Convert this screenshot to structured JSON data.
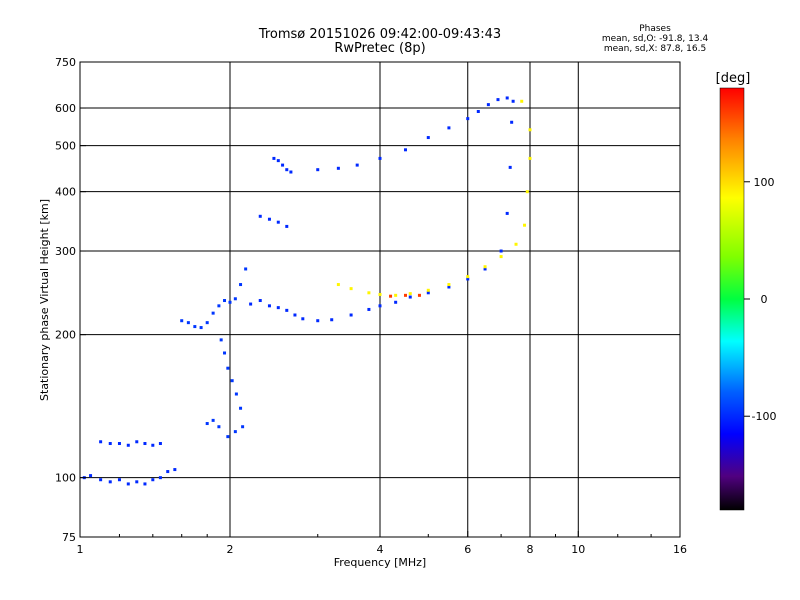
{
  "title_line1": "Tromsø 20151026 09:42:00-09:43:43",
  "title_line2": "RwPretec (8p)",
  "phase_header": "Phases",
  "phase_o_line": "mean, sd,O: -91.8, 13.4",
  "phase_x_line": "mean, sd,X: 87.8, 16.5",
  "chart_data": {
    "type": "scatter",
    "xlabel": "Frequency [MHz]",
    "ylabel": "Stationary phase Virtual Height [km]",
    "xscale": "log",
    "yscale": "log",
    "xlim": [
      1,
      16
    ],
    "ylim": [
      75,
      750
    ],
    "xticks": [
      1,
      2,
      4,
      6,
      8,
      10,
      16
    ],
    "yticks": [
      75,
      100,
      200,
      300,
      400,
      500,
      600,
      750
    ],
    "grid_x": [
      2,
      4,
      6,
      8,
      10
    ],
    "grid_y": [
      100,
      200,
      300,
      400,
      500,
      600
    ],
    "colorbar": {
      "label": "[deg]",
      "min": -180,
      "max": 180,
      "ticks": [
        100,
        0,
        -100
      ],
      "colormap": "rainbow"
    },
    "series": [
      {
        "phase": -100,
        "points": [
          [
            1.02,
            100
          ],
          [
            1.05,
            101
          ],
          [
            1.1,
            99
          ],
          [
            1.15,
            98
          ],
          [
            1.2,
            99
          ],
          [
            1.25,
            97
          ],
          [
            1.3,
            98
          ],
          [
            1.35,
            97
          ],
          [
            1.4,
            99
          ],
          [
            1.45,
            100
          ],
          [
            1.5,
            103
          ],
          [
            1.55,
            104
          ]
        ]
      },
      {
        "phase": -100,
        "points": [
          [
            1.1,
            119
          ],
          [
            1.15,
            118
          ],
          [
            1.2,
            118
          ],
          [
            1.25,
            117
          ],
          [
            1.3,
            119
          ],
          [
            1.35,
            118
          ],
          [
            1.4,
            117
          ],
          [
            1.45,
            118
          ]
        ]
      },
      {
        "phase": -95,
        "points": [
          [
            1.6,
            214
          ],
          [
            1.65,
            212
          ],
          [
            1.7,
            208
          ],
          [
            1.75,
            207
          ],
          [
            1.8,
            212
          ],
          [
            1.85,
            222
          ],
          [
            1.9,
            230
          ],
          [
            1.95,
            236
          ],
          [
            2.0,
            234
          ],
          [
            2.05,
            238
          ],
          [
            2.1,
            255
          ],
          [
            2.15,
            275
          ]
        ]
      },
      {
        "phase": -95,
        "points": [
          [
            1.92,
            195
          ],
          [
            1.95,
            183
          ],
          [
            1.98,
            170
          ],
          [
            2.02,
            160
          ],
          [
            2.06,
            150
          ],
          [
            2.1,
            140
          ],
          [
            2.12,
            128
          ],
          [
            2.05,
            125
          ],
          [
            1.98,
            122
          ],
          [
            1.9,
            128
          ],
          [
            1.85,
            132
          ],
          [
            1.8,
            130
          ]
        ]
      },
      {
        "phase": -100,
        "points": [
          [
            2.2,
            232
          ],
          [
            2.3,
            236
          ],
          [
            2.4,
            230
          ],
          [
            2.5,
            228
          ],
          [
            2.6,
            225
          ],
          [
            2.7,
            220
          ],
          [
            2.8,
            216
          ],
          [
            3.0,
            214
          ],
          [
            3.2,
            215
          ],
          [
            3.5,
            220
          ],
          [
            3.8,
            226
          ],
          [
            4.0,
            230
          ],
          [
            4.3,
            234
          ],
          [
            4.6,
            240
          ],
          [
            5.0,
            245
          ],
          [
            5.5,
            252
          ],
          [
            6.0,
            262
          ],
          [
            6.5,
            275
          ],
          [
            7.0,
            300
          ],
          [
            7.2,
            360
          ],
          [
            7.3,
            450
          ],
          [
            7.35,
            560
          ],
          [
            7.4,
            620
          ]
        ]
      },
      {
        "phase": -100,
        "points": [
          [
            2.45,
            470
          ],
          [
            2.5,
            465
          ],
          [
            2.55,
            455
          ],
          [
            2.6,
            445
          ],
          [
            2.65,
            440
          ],
          [
            2.3,
            355
          ],
          [
            2.4,
            350
          ],
          [
            2.5,
            345
          ],
          [
            2.6,
            338
          ]
        ]
      },
      {
        "phase": -100,
        "points": [
          [
            3.0,
            445
          ],
          [
            3.3,
            448
          ],
          [
            3.6,
            455
          ],
          [
            4.0,
            470
          ],
          [
            4.5,
            490
          ],
          [
            5.0,
            520
          ],
          [
            5.5,
            545
          ],
          [
            6.0,
            570
          ],
          [
            6.3,
            590
          ],
          [
            6.6,
            610
          ],
          [
            6.9,
            625
          ],
          [
            7.2,
            630
          ]
        ]
      },
      {
        "phase": 90,
        "points": [
          [
            3.3,
            255
          ],
          [
            3.5,
            250
          ],
          [
            3.8,
            245
          ],
          [
            4.0,
            243
          ],
          [
            4.3,
            242
          ],
          [
            4.6,
            244
          ],
          [
            5.0,
            248
          ],
          [
            5.5,
            255
          ],
          [
            6.0,
            265
          ],
          [
            6.5,
            278
          ],
          [
            7.0,
            292
          ],
          [
            7.5,
            310
          ],
          [
            7.8,
            340
          ],
          [
            7.9,
            400
          ],
          [
            8.0,
            470
          ],
          [
            8.0,
            540
          ],
          [
            7.7,
            620
          ]
        ]
      },
      {
        "phase": 160,
        "points": [
          [
            4.2,
            241
          ],
          [
            4.5,
            242
          ],
          [
            4.8,
            242
          ]
        ]
      }
    ]
  }
}
